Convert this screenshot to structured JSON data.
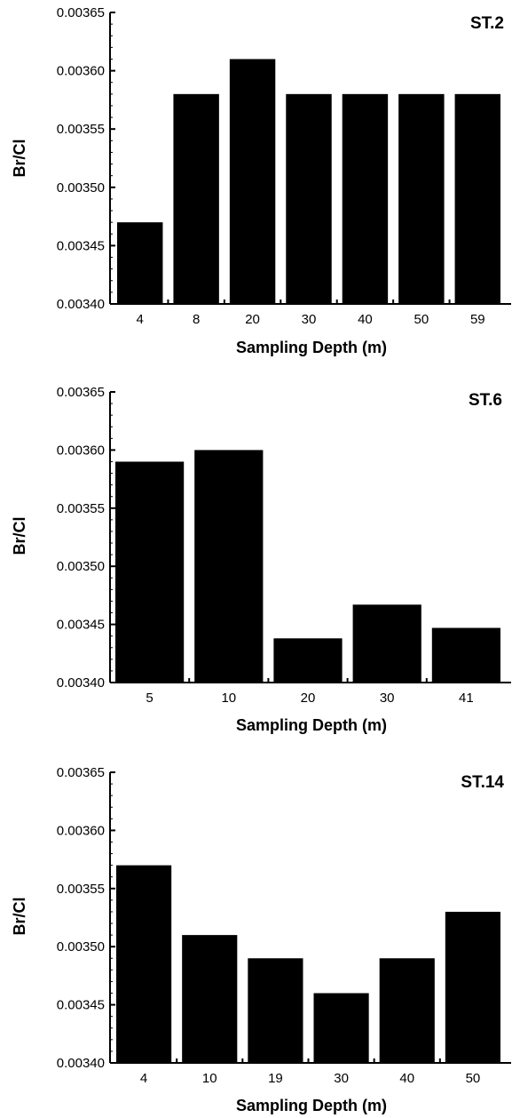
{
  "chart_data": [
    {
      "type": "bar",
      "title": "ST.2",
      "xlabel": "Sampling  Depth  (m)",
      "ylabel": "Br/Cl",
      "categories": [
        "4",
        "8",
        "20",
        "30",
        "40",
        "50",
        "59"
      ],
      "values": [
        0.00347,
        0.00358,
        0.00361,
        0.00358,
        0.00358,
        0.00358,
        0.00358
      ],
      "ylim": [
        0.0034,
        0.00365
      ],
      "yticks": [
        "0.00340",
        "0.00345",
        "0.00350",
        "0.00355",
        "0.00360",
        "0.00365"
      ],
      "bar_color": "#000000",
      "grid": false
    },
    {
      "type": "bar",
      "title": "ST.6",
      "xlabel": "Sampling  Depth  (m)",
      "ylabel": "Br/Cl",
      "categories": [
        "5",
        "10",
        "20",
        "30",
        "41"
      ],
      "values": [
        0.00359,
        0.0036,
        0.003438,
        0.003467,
        0.003447
      ],
      "ylim": [
        0.0034,
        0.00365
      ],
      "yticks": [
        "0.00340",
        "0.00345",
        "0.00350",
        "0.00355",
        "0.00360",
        "0.00365"
      ],
      "bar_color": "#000000",
      "grid": false
    },
    {
      "type": "bar",
      "title": "ST.14",
      "xlabel": "Sampling  Depth  (m)",
      "ylabel": "Br/Cl",
      "categories": [
        "4",
        "10",
        "19",
        "30",
        "40",
        "50"
      ],
      "values": [
        0.00357,
        0.00351,
        0.00349,
        0.00346,
        0.00349,
        0.00353
      ],
      "ylim": [
        0.0034,
        0.00365
      ],
      "yticks": [
        "0.00340",
        "0.00345",
        "0.00350",
        "0.00355",
        "0.00360",
        "0.00365"
      ],
      "bar_color": "#000000",
      "grid": false
    }
  ]
}
